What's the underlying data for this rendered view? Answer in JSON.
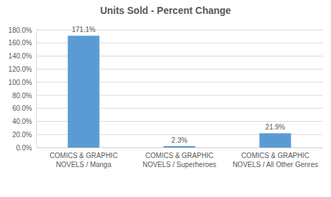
{
  "chart_data": {
    "type": "bar",
    "title": "Units Sold - Percent Change",
    "categories": [
      "COMICS & GRAPHIC NOVELS / Manga",
      "COMICS & GRAPHIC NOVELS / Superheroes",
      "COMICS & GRAPHIC NOVELS / All Other Genres"
    ],
    "values": [
      171.1,
      2.3,
      21.9
    ],
    "value_labels": [
      "171.1%",
      "2.3%",
      "21.9%"
    ],
    "color": "#5b9bd5",
    "ylim": [
      0,
      180
    ],
    "yticks": [
      {
        "value": 0,
        "label": "0.0%"
      },
      {
        "value": 20,
        "label": "20.0%"
      },
      {
        "value": 40,
        "label": "40.0%"
      },
      {
        "value": 60,
        "label": "60.0%"
      },
      {
        "value": 80,
        "label": "80.0%"
      },
      {
        "value": 100,
        "label": "100.0%"
      },
      {
        "value": 120,
        "label": "120.0%"
      },
      {
        "value": 140,
        "label": "140.0%"
      },
      {
        "value": 160,
        "label": "160.0%"
      },
      {
        "value": 180,
        "label": "180.0%"
      }
    ],
    "grid": true,
    "data_labels": true
  }
}
